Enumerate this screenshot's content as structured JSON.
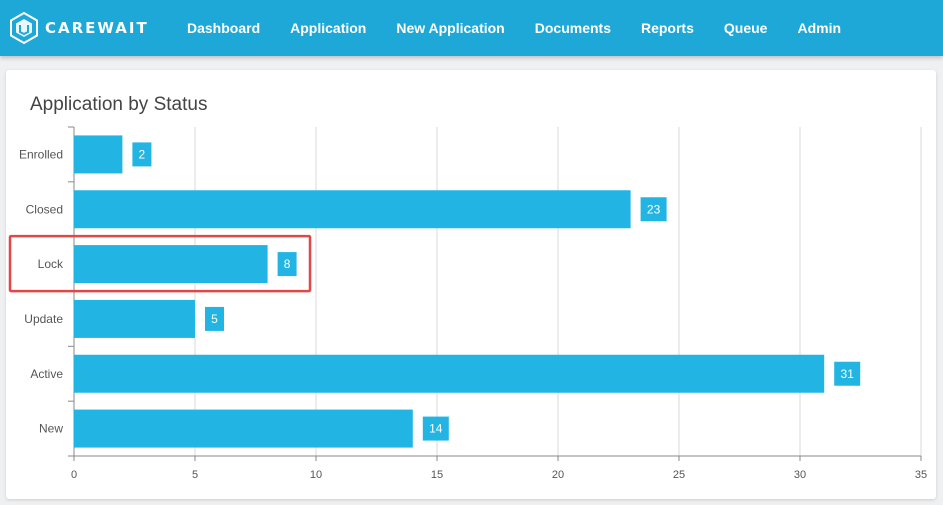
{
  "app": {
    "brand": "CAREWAIT"
  },
  "nav": {
    "items": [
      {
        "label": "Dashboard",
        "name": "nav-dashboard"
      },
      {
        "label": "Application",
        "name": "nav-application"
      },
      {
        "label": "New Application",
        "name": "nav-new-application"
      },
      {
        "label": "Documents",
        "name": "nav-documents"
      },
      {
        "label": "Reports",
        "name": "nav-reports"
      },
      {
        "label": "Queue",
        "name": "nav-queue"
      },
      {
        "label": "Admin",
        "name": "nav-admin"
      }
    ]
  },
  "panel": {
    "title": "Application by Status"
  },
  "colors": {
    "header": "#1ea8d8",
    "bar": "#22b5e4",
    "highlight": "#e04848"
  },
  "chart_data": {
    "type": "bar",
    "orientation": "horizontal",
    "categories": [
      "Enrolled",
      "Closed",
      "Lock",
      "Update",
      "Active",
      "New"
    ],
    "values": [
      2,
      23,
      8,
      5,
      31,
      14
    ],
    "xlim": [
      0,
      35
    ],
    "xticks": [
      0,
      5,
      10,
      15,
      20,
      25,
      30,
      35
    ],
    "grid": true,
    "highlighted_category": "Lock"
  }
}
